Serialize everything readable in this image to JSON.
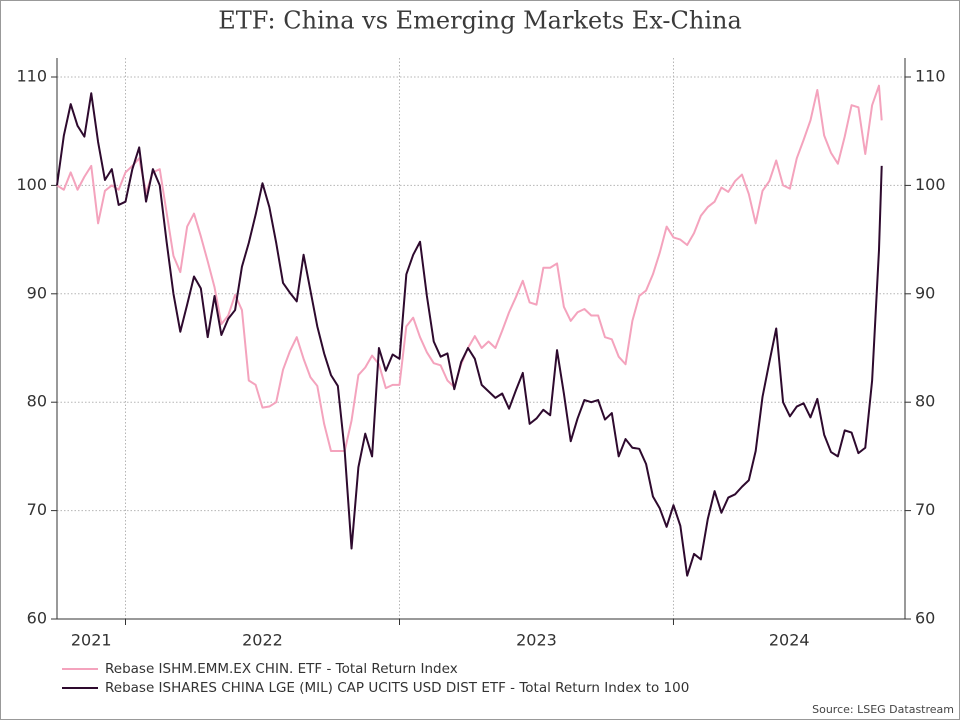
{
  "chart_data": {
    "type": "line",
    "title": "ETF: China vs Emerging Markets Ex-China",
    "source": "Source: LSEG Datastream",
    "xlim": [
      2021.75,
      2024.845
    ],
    "xticks": [
      {
        "value": 2021,
        "label": "2021"
      },
      {
        "value": 2022,
        "label": "2022"
      },
      {
        "value": 2023,
        "label": "2023"
      },
      {
        "value": 2024,
        "label": "2024"
      }
    ],
    "ylim": [
      60,
      110
    ],
    "yticks": [
      60,
      70,
      80,
      90,
      100,
      110
    ],
    "y2lim": [
      60,
      110
    ],
    "y2ticks": [
      60,
      70,
      80,
      90,
      100,
      110
    ],
    "grid": true,
    "legend": "bottom",
    "x": [
      2021.75,
      2021.775,
      2021.8,
      2021.825,
      2021.85,
      2021.875,
      2021.9,
      2021.925,
      2021.95,
      2021.975,
      2022,
      2022.025,
      2022.05,
      2022.075,
      2022.1,
      2022.125,
      2022.15,
      2022.175,
      2022.2,
      2022.225,
      2022.25,
      2022.275,
      2022.3,
      2022.325,
      2022.35,
      2022.375,
      2022.4,
      2022.425,
      2022.45,
      2022.475,
      2022.5,
      2022.525,
      2022.55,
      2022.575,
      2022.6,
      2022.625,
      2022.65,
      2022.675,
      2022.7,
      2022.725,
      2022.75,
      2022.775,
      2022.8,
      2022.825,
      2022.85,
      2022.875,
      2022.9,
      2022.925,
      2022.95,
      2022.975,
      2023,
      2023.025,
      2023.05,
      2023.075,
      2023.1,
      2023.125,
      2023.15,
      2023.175,
      2023.2,
      2023.225,
      2023.25,
      2023.275,
      2023.3,
      2023.325,
      2023.35,
      2023.375,
      2023.4,
      2023.425,
      2023.45,
      2023.475,
      2023.5,
      2023.525,
      2023.55,
      2023.575,
      2023.6,
      2023.625,
      2023.65,
      2023.675,
      2023.7,
      2023.725,
      2023.75,
      2023.775,
      2023.8,
      2023.825,
      2023.85,
      2023.875,
      2023.9,
      2023.925,
      2023.95,
      2023.975,
      2024,
      2024.025,
      2024.05,
      2024.075,
      2024.1,
      2024.125,
      2024.15,
      2024.175,
      2024.2,
      2024.225,
      2024.25,
      2024.275,
      2024.3,
      2024.325,
      2024.35,
      2024.375,
      2024.4,
      2024.425,
      2024.45,
      2024.475,
      2024.5,
      2024.525,
      2024.55,
      2024.575,
      2024.6,
      2024.625,
      2024.65,
      2024.675,
      2024.7,
      2024.725,
      2024.75,
      2024.76
    ],
    "series": [
      {
        "name": "Rebase ISHM.EMM.EX CHIN. ETF - Total Return Index",
        "color": "#f4a3bd",
        "values": [
          100,
          99.6,
          101.2,
          99.6,
          100.8,
          101.8,
          96.5,
          99.5,
          100,
          99.6,
          101.2,
          101.8,
          102.5,
          99.3,
          101.2,
          101.5,
          97.5,
          93.5,
          92,
          96.2,
          97.4,
          95.3,
          93,
          90.6,
          87.2,
          88,
          89.9,
          88.5,
          82,
          81.6,
          79.5,
          79.6,
          80,
          83,
          84.7,
          86,
          84,
          82.3,
          81.5,
          78,
          75.5,
          75.5,
          75.5,
          78.3,
          82.5,
          83.2,
          84.3,
          83.5,
          81.3,
          81.6,
          81.6,
          87,
          87.8,
          86,
          84.6,
          83.6,
          83.4,
          82,
          81.4,
          83.5,
          85,
          86.1,
          85,
          85.6,
          85,
          86.6,
          88.3,
          89.7,
          91.2,
          89.2,
          89,
          92.4,
          92.4,
          92.8,
          88.8,
          87.5,
          88.3,
          88.6,
          88,
          88,
          86,
          85.8,
          84.2,
          83.5,
          87.5,
          89.8,
          90.3,
          91.8,
          93.8,
          96.2,
          95.2,
          95,
          94.5,
          95.6,
          97.2,
          98,
          98.5,
          99.8,
          99.4,
          100.4,
          101,
          99.2,
          96.5,
          99.5,
          100.4,
          102.3,
          100,
          99.7,
          102.5,
          104.2,
          106,
          108.8,
          104.6,
          103,
          102,
          104.5,
          107.4,
          107.2,
          102.9,
          107.4,
          109.2,
          106
        ]
      },
      {
        "name": "Rebase ISHARES CHINA LGE (MIL) CAP UCITS USD DIST ETF - Total Return Index to 100",
        "color": "#2e0a2e",
        "values": [
          100,
          104.6,
          107.5,
          105.5,
          104.5,
          108.5,
          104,
          100.5,
          101.5,
          98.2,
          98.5,
          101.5,
          103.5,
          98.5,
          101.5,
          100,
          94.8,
          90,
          86.5,
          89,
          91.6,
          90.5,
          86,
          89.8,
          86.2,
          87.7,
          88.5,
          92.5,
          94.7,
          97.3,
          100.2,
          98,
          94.7,
          91,
          90.1,
          89.3,
          93.6,
          90.3,
          87,
          84.5,
          82.5,
          81.5,
          75.5,
          66.5,
          74,
          77.1,
          75,
          85,
          82.9,
          84.4,
          84,
          91.8,
          93.6,
          94.8,
          89.8,
          85.6,
          84.2,
          84.5,
          81.2,
          83.7,
          85,
          84,
          81.6,
          81,
          80.4,
          80.8,
          79.4,
          81.1,
          82.7,
          78,
          78.5,
          79.3,
          78.8,
          84.8,
          80.8,
          76.4,
          78.5,
          80.2,
          80,
          80.2,
          78.4,
          79,
          75,
          76.6,
          75.8,
          75.7,
          74.3,
          71.3,
          70.2,
          68.5,
          70.5,
          68.6,
          64,
          66,
          65.5,
          69.2,
          71.8,
          69.8,
          71.2,
          71.5,
          72.2,
          72.8,
          75.5,
          80.5,
          83.7,
          86.8,
          80,
          78.7,
          79.6,
          79.9,
          78.6,
          80.3,
          77,
          75.4,
          75,
          77.4,
          77.2,
          75.3,
          75.8,
          82,
          94,
          101.8
        ]
      }
    ]
  }
}
